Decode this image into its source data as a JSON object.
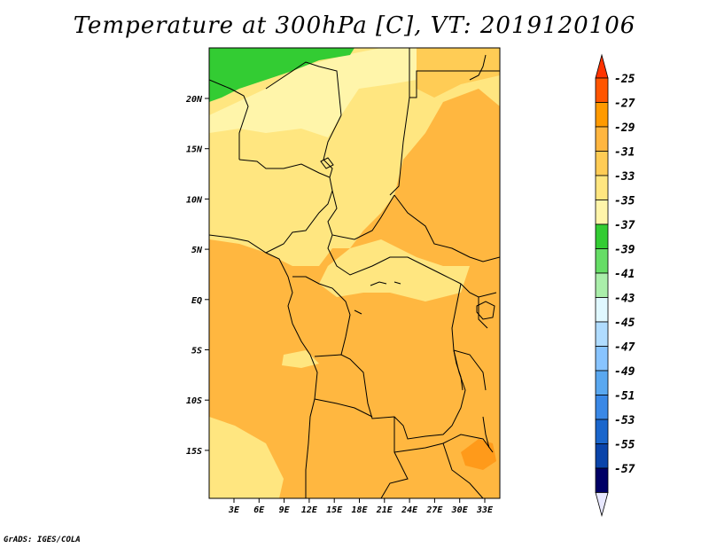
{
  "title": "Temperature at 300hPa [C], VT: 2019120106",
  "credit": "GrADS: IGES/COLA",
  "map": {
    "lon_labels": [
      "3E",
      "6E",
      "9E",
      "12E",
      "15E",
      "18E",
      "21E",
      "24E",
      "27E",
      "30E",
      "33E"
    ],
    "lat_labels": [
      "20N",
      "15N",
      "10N",
      "5N",
      "EQ",
      "5S",
      "10S",
      "15S"
    ],
    "fill_colors": {
      "green_dark": "#33cc33",
      "yellow_pale": "#fff5aa",
      "yellow_light": "#ffe680",
      "orange_light": "#ffcc55",
      "orange": "#ffb740",
      "orange_dark": "#ff9a1a"
    }
  },
  "colorbar": {
    "labels": [
      "-25",
      "-27",
      "-29",
      "-31",
      "-33",
      "-35",
      "-37",
      "-39",
      "-41",
      "-43",
      "-45",
      "-47",
      "-49",
      "-51",
      "-53",
      "-55",
      "-57"
    ],
    "colors": [
      "#ff5500",
      "#ff9a00",
      "#ffb640",
      "#ffcc55",
      "#ffe680",
      "#fff5aa",
      "#33cc33",
      "#66dd66",
      "#aaeeaa",
      "#e0f8ff",
      "#b0dcff",
      "#88c4ff",
      "#5aa8f0",
      "#3a88e6",
      "#1a66cc",
      "#0a44aa",
      "#000066"
    ],
    "end_colors": {
      "top": "#ff3300",
      "bottom": "#e8e8ff"
    }
  }
}
